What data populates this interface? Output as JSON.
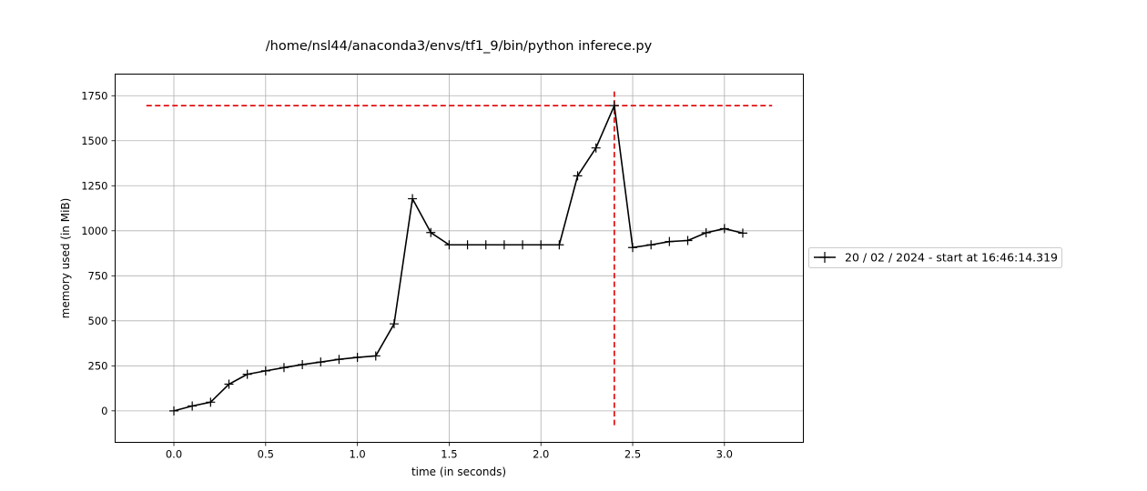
{
  "chart_data": {
    "type": "line",
    "title": "/home/nsl44/anaconda3/envs/tf1_9/bin/python inferece.py",
    "xlabel": "time (in seconds)",
    "ylabel": "memory used (in MiB)",
    "xlim": [
      -0.32,
      3.43
    ],
    "ylim": [
      -175,
      1870
    ],
    "xticks": [
      "0.0",
      "0.5",
      "1.0",
      "1.5",
      "2.0",
      "2.5",
      "3.0"
    ],
    "yticks": [
      "0",
      "250",
      "500",
      "750",
      "1000",
      "1250",
      "1500",
      "1750"
    ],
    "grid": true,
    "legend_position": "right-center",
    "series": [
      {
        "name": "20 / 02 / 2024 - start at 16:46:14.319",
        "color": "#000000",
        "marker": "plus",
        "x": [
          0.0,
          0.1,
          0.2,
          0.3,
          0.4,
          0.5,
          0.6,
          0.7,
          0.8,
          0.9,
          1.0,
          1.1,
          1.2,
          1.3,
          1.4,
          1.5,
          1.6,
          1.7,
          1.8,
          1.9,
          2.0,
          2.1,
          2.2,
          2.3,
          2.4,
          2.5,
          2.6,
          2.7,
          2.8,
          2.9,
          3.0,
          3.1
        ],
        "y": [
          0,
          27,
          48,
          148,
          203,
          222,
          240,
          257,
          271,
          286,
          297,
          305,
          483,
          1178,
          990,
          922,
          922,
          922,
          922,
          922,
          922,
          922,
          1305,
          1460,
          1695,
          907,
          922,
          940,
          946,
          989,
          1012,
          987
        ]
      }
    ],
    "annotations": [
      {
        "kind": "hline",
        "color": "#e00000",
        "style": "dashed",
        "y": 1695,
        "x_from": -0.15,
        "x_to": 3.26
      },
      {
        "kind": "vline",
        "color": "#e00000",
        "style": "dashed",
        "x": 2.4,
        "y_from": -80,
        "y_to": 1780
      }
    ]
  }
}
